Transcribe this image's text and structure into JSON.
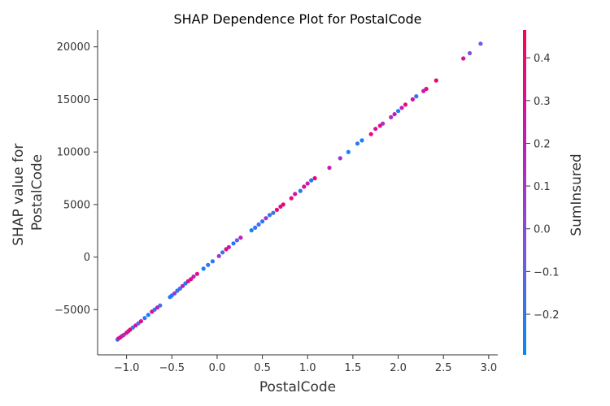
{
  "chart_data": {
    "type": "scatter",
    "title": "SHAP Dependence Plot for PostalCode",
    "xlabel": "PostalCode",
    "ylabel_lines": [
      "SHAP value for",
      "PostalCode"
    ],
    "xlim": [
      -1.32,
      3.1
    ],
    "ylim": [
      -9300,
      21600
    ],
    "xticks": [
      -1.0,
      -0.5,
      0.0,
      0.5,
      1.0,
      1.5,
      2.0,
      2.5,
      3.0
    ],
    "xtick_labels": [
      "−1.0",
      "−0.5",
      "0.0",
      "0.5",
      "1.0",
      "1.5",
      "2.0",
      "2.5",
      "3.0"
    ],
    "yticks": [
      -5000,
      0,
      5000,
      10000,
      15000,
      20000
    ],
    "ytick_labels": [
      "−5000",
      "0",
      "5000",
      "10000",
      "15000",
      "20000"
    ],
    "colorbar": {
      "label": "SumInsured",
      "range": [
        -0.295,
        0.465
      ],
      "ticks": [
        -0.2,
        -0.1,
        0.0,
        0.1,
        0.2,
        0.3,
        0.4
      ],
      "tick_labels": [
        "−0.2",
        "−0.1",
        "0.0",
        "0.1",
        "0.2",
        "0.3",
        "0.4"
      ],
      "colormap": [
        "#008bfb",
        "#7b54e6",
        "#c619b4",
        "#ff0052"
      ]
    },
    "points": [
      {
        "x": -1.1,
        "y": -7850,
        "c": -0.25
      },
      {
        "x": -1.09,
        "y": -7750,
        "c": 0.2
      },
      {
        "x": -1.07,
        "y": -7650,
        "c": 0.35
      },
      {
        "x": -1.05,
        "y": -7500,
        "c": 0.3
      },
      {
        "x": -1.03,
        "y": -7400,
        "c": 0.1
      },
      {
        "x": -1.0,
        "y": -7200,
        "c": 0.35
      },
      {
        "x": -0.98,
        "y": -7050,
        "c": 0.2
      },
      {
        "x": -0.96,
        "y": -6900,
        "c": 0.4
      },
      {
        "x": -0.93,
        "y": -6700,
        "c": -0.2
      },
      {
        "x": -0.9,
        "y": -6500,
        "c": 0.25
      },
      {
        "x": -0.87,
        "y": -6300,
        "c": -0.1
      },
      {
        "x": -0.84,
        "y": -6100,
        "c": 0.3
      },
      {
        "x": -0.8,
        "y": -5800,
        "c": -0.2
      },
      {
        "x": -0.76,
        "y": -5500,
        "c": -0.25
      },
      {
        "x": -0.72,
        "y": -5200,
        "c": 0.3
      },
      {
        "x": -0.69,
        "y": -5000,
        "c": -0.2
      },
      {
        "x": -0.66,
        "y": -4800,
        "c": 0.2
      },
      {
        "x": -0.63,
        "y": -4600,
        "c": -0.15
      },
      {
        "x": -0.52,
        "y": -3800,
        "c": -0.2
      },
      {
        "x": -0.5,
        "y": -3650,
        "c": -0.25
      },
      {
        "x": -0.47,
        "y": -3450,
        "c": 0.1
      },
      {
        "x": -0.44,
        "y": -3200,
        "c": -0.2
      },
      {
        "x": -0.41,
        "y": -3000,
        "c": -0.15
      },
      {
        "x": -0.38,
        "y": -2750,
        "c": 0.2
      },
      {
        "x": -0.35,
        "y": -2500,
        "c": -0.25
      },
      {
        "x": -0.32,
        "y": -2300,
        "c": 0.3
      },
      {
        "x": -0.29,
        "y": -2100,
        "c": 0.35
      },
      {
        "x": -0.26,
        "y": -1850,
        "c": 0.2
      },
      {
        "x": -0.22,
        "y": -1600,
        "c": 0.3
      },
      {
        "x": -0.15,
        "y": -1100,
        "c": -0.25
      },
      {
        "x": -0.1,
        "y": -750,
        "c": -0.2
      },
      {
        "x": -0.05,
        "y": -400,
        "c": -0.2
      },
      {
        "x": 0.02,
        "y": 100,
        "c": 0.1
      },
      {
        "x": 0.06,
        "y": 450,
        "c": -0.2
      },
      {
        "x": 0.1,
        "y": 750,
        "c": 0.35
      },
      {
        "x": 0.13,
        "y": 950,
        "c": 0.2
      },
      {
        "x": 0.18,
        "y": 1300,
        "c": -0.2
      },
      {
        "x": 0.22,
        "y": 1600,
        "c": -0.1
      },
      {
        "x": 0.26,
        "y": 1850,
        "c": 0.2
      },
      {
        "x": 0.38,
        "y": 2550,
        "c": -0.25
      },
      {
        "x": 0.42,
        "y": 2800,
        "c": -0.2
      },
      {
        "x": 0.46,
        "y": 3100,
        "c": -0.15
      },
      {
        "x": 0.5,
        "y": 3400,
        "c": -0.2
      },
      {
        "x": 0.54,
        "y": 3700,
        "c": 0.1
      },
      {
        "x": 0.58,
        "y": 4000,
        "c": -0.2
      },
      {
        "x": 0.62,
        "y": 4200,
        "c": -0.15
      },
      {
        "x": 0.66,
        "y": 4500,
        "c": 0.35
      },
      {
        "x": 0.7,
        "y": 4800,
        "c": 0.3
      },
      {
        "x": 0.73,
        "y": 5000,
        "c": 0.4
      },
      {
        "x": 0.82,
        "y": 5600,
        "c": 0.35
      },
      {
        "x": 0.86,
        "y": 6000,
        "c": 0.25
      },
      {
        "x": 0.92,
        "y": 6300,
        "c": -0.2
      },
      {
        "x": 0.96,
        "y": 6700,
        "c": 0.3
      },
      {
        "x": 1.0,
        "y": 7000,
        "c": 0.2
      },
      {
        "x": 1.04,
        "y": 7300,
        "c": -0.25
      },
      {
        "x": 1.08,
        "y": 7500,
        "c": 0.4
      },
      {
        "x": 1.24,
        "y": 8500,
        "c": 0.2
      },
      {
        "x": 1.36,
        "y": 9400,
        "c": 0.1
      },
      {
        "x": 1.45,
        "y": 10000,
        "c": -0.25
      },
      {
        "x": 1.55,
        "y": 10800,
        "c": -0.2
      },
      {
        "x": 1.6,
        "y": 11100,
        "c": -0.25
      },
      {
        "x": 1.7,
        "y": 11700,
        "c": 0.35
      },
      {
        "x": 1.75,
        "y": 12200,
        "c": 0.3
      },
      {
        "x": 1.8,
        "y": 12500,
        "c": 0.35
      },
      {
        "x": 1.83,
        "y": 12700,
        "c": 0.1
      },
      {
        "x": 1.92,
        "y": 13300,
        "c": 0.1
      },
      {
        "x": 1.96,
        "y": 13600,
        "c": 0.2
      },
      {
        "x": 2.0,
        "y": 13900,
        "c": -0.25
      },
      {
        "x": 2.04,
        "y": 14200,
        "c": 0.2
      },
      {
        "x": 2.08,
        "y": 14500,
        "c": 0.35
      },
      {
        "x": 2.16,
        "y": 15000,
        "c": 0.25
      },
      {
        "x": 2.2,
        "y": 15300,
        "c": -0.2
      },
      {
        "x": 2.28,
        "y": 15800,
        "c": 0.2
      },
      {
        "x": 2.31,
        "y": 16000,
        "c": 0.35
      },
      {
        "x": 2.42,
        "y": 16800,
        "c": 0.4
      },
      {
        "x": 2.72,
        "y": 18900,
        "c": 0.3
      },
      {
        "x": 2.79,
        "y": 19400,
        "c": -0.05
      },
      {
        "x": 2.91,
        "y": 20300,
        "c": -0.05
      }
    ]
  }
}
